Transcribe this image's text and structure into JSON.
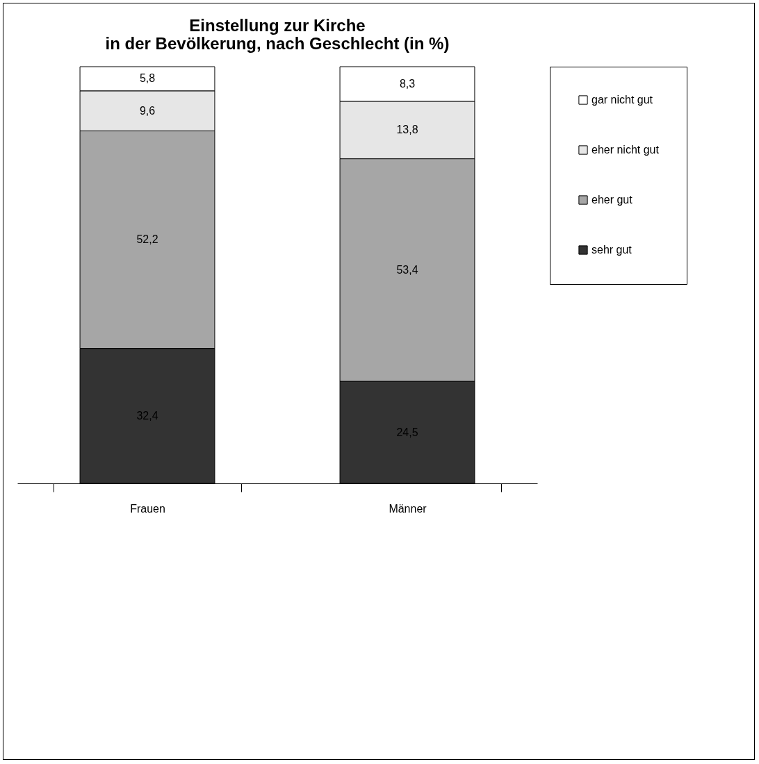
{
  "chart_data": {
    "type": "bar",
    "title": "Einstellung zur Kirche\nin der Bevölkerung, nach Geschlecht (in %)",
    "categories": [
      "Frauen",
      "Männer"
    ],
    "stacked": true,
    "legend": "right",
    "grid": false,
    "series": [
      {
        "name": "sehr gut",
        "color": "#333333",
        "values": [
          32.4,
          24.5
        ],
        "value_labels": [
          "32,4",
          "24,5"
        ]
      },
      {
        "name": "eher gut",
        "color": "#a6a6a6",
        "values": [
          52.2,
          53.4
        ],
        "value_labels": [
          "52,2",
          "53,4"
        ]
      },
      {
        "name": "eher nicht gut",
        "color": "#e6e6e6",
        "values": [
          9.6,
          13.8
        ],
        "value_labels": [
          "9,6",
          "13,8"
        ]
      },
      {
        "name": "gar nicht gut",
        "color": "#ffffff",
        "values": [
          5.8,
          8.3
        ],
        "value_labels": [
          "5,8",
          "8,3"
        ]
      }
    ]
  }
}
